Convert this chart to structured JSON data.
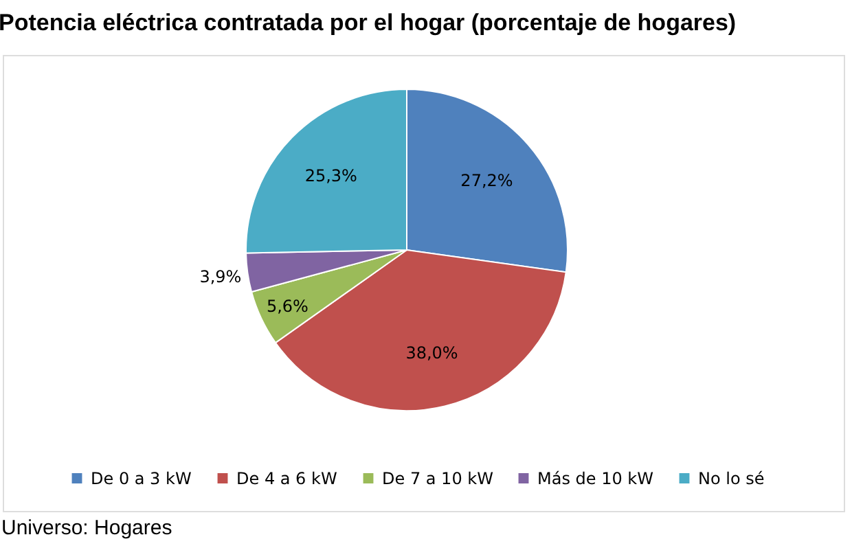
{
  "chart_data": {
    "type": "pie",
    "title": "Potencia eléctrica contratada por el hogar (porcentaje de hogares)",
    "categories": [
      "De 0 a 3 kW",
      "De 4 a 6 kW",
      "De 7 a 10 kW",
      "Más de 10 kW",
      "No lo sé"
    ],
    "values": [
      27.2,
      38.0,
      5.6,
      3.9,
      25.3
    ],
    "colors": [
      "#4f81bd",
      "#c0504d",
      "#9bbb59",
      "#8064a2",
      "#4bacc6"
    ],
    "value_labels": [
      "27,2%",
      "38,0%",
      "5,6%",
      "3,9%",
      "25,3%"
    ],
    "legend": "bottom",
    "annotations": [
      "Universo: Hogares"
    ]
  }
}
